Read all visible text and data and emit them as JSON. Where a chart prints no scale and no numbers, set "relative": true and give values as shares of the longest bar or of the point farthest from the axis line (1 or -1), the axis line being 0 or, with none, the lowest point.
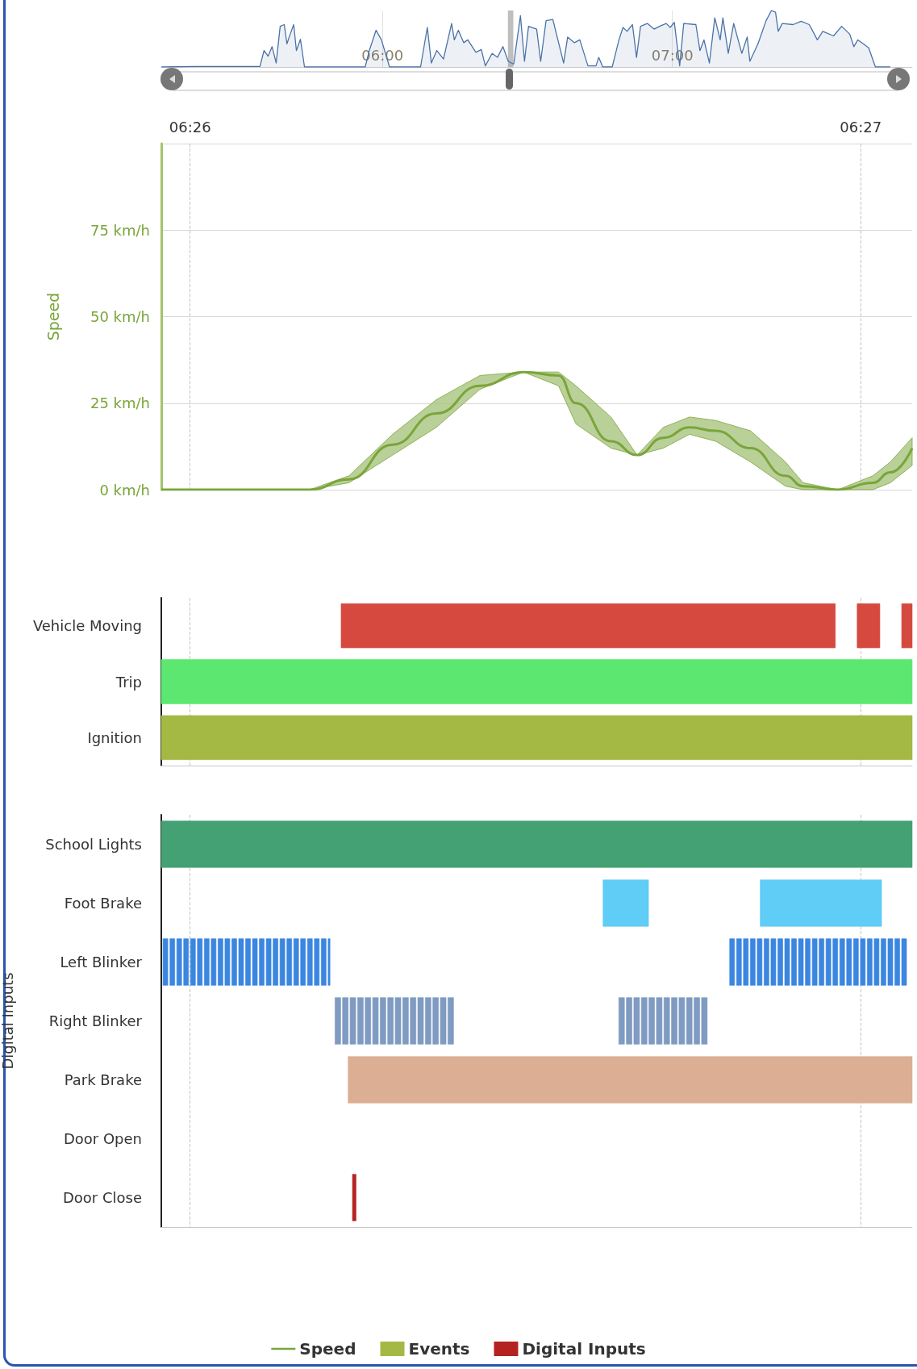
{
  "chart_data": [
    {
      "type": "area",
      "relative": true,
      "color": "#4a72a8",
      "grid": "x",
      "xlim": [
        5.237,
        7.827
      ],
      "xticks": [
        {
          "value": 6,
          "label": "06:00"
        },
        {
          "value": 7,
          "label": "07:00"
        }
      ],
      "tick_labels": "x",
      "bands": [
        {
          "axis": "x",
          "from": 6.432617,
          "to": 6.451279,
          "color": "#b8b8b8"
        }
      ],
      "x": [
        5.2374,
        5.354,
        5.5773,
        5.5913,
        5.6053,
        5.6192,
        5.6332,
        5.6471,
        5.6611,
        5.6704,
        5.6816,
        5.6937,
        5.703,
        5.7169,
        5.7309,
        5.9404,
        5.9544,
        5.9777,
        5.9963,
        6.0242,
        6.1313,
        6.1546,
        6.1685,
        6.1872,
        6.2104,
        6.2384,
        6.2477,
        6.2616,
        6.2803,
        6.2942,
        6.3222,
        6.3408,
        6.3547,
        6.378,
        6.3966,
        6.4153,
        6.4339,
        6.4525,
        6.4758,
        6.4898,
        6.5037,
        6.5317,
        6.5456,
        6.5642,
        6.5875,
        6.6248,
        6.6387,
        6.662,
        6.6806,
        6.7086,
        6.7365,
        6.7458,
        6.7598,
        6.7924,
        6.8156,
        6.8296,
        6.8436,
        6.8622,
        6.8762,
        6.8901,
        6.9134,
        6.9367,
        6.9553,
        6.9786,
        6.9926,
        7.0065,
        7.0251,
        7.0391,
        7.081,
        7.095,
        7.1089,
        7.1276,
        7.1462,
        7.1648,
        7.1741,
        7.1927,
        7.2114,
        7.2393,
        7.2579,
        7.2672,
        7.2952,
        7.3231,
        7.3417,
        7.3557,
        7.365,
        7.379,
        7.4162,
        7.4441,
        7.4721,
        7.5,
        7.5186,
        7.5559,
        7.5838,
        7.6117,
        7.6257,
        7.6397,
        7.6583,
        7.6769,
        7.7002,
        7.7514
      ],
      "values": [
        0,
        0.01,
        0.01,
        0.29,
        0.19,
        0.36,
        0.07,
        0.72,
        0.75,
        0.41,
        0.58,
        0.75,
        0.29,
        0.49,
        0,
        0,
        0.29,
        0.65,
        0.48,
        0,
        0,
        0.7,
        0.07,
        0.29,
        0.14,
        0.77,
        0.48,
        0.65,
        0.43,
        0.48,
        0.26,
        0.31,
        0.02,
        0.24,
        0.17,
        0.36,
        0.1,
        0.05,
        0.91,
        0.1,
        0.72,
        0.67,
        0.1,
        0.82,
        0.84,
        0.07,
        0.53,
        0.43,
        0.48,
        0.02,
        0.02,
        0.17,
        0,
        0,
        0.48,
        0.7,
        0.63,
        0.75,
        0.17,
        0.72,
        0.77,
        0.67,
        0.72,
        0.77,
        0.7,
        0.79,
        0.02,
        0.77,
        0.75,
        0.29,
        0.48,
        0.07,
        0.87,
        0.48,
        0.87,
        0.24,
        0.77,
        0.24,
        0.53,
        0.1,
        0.41,
        0.82,
        1,
        0.97,
        0.63,
        0.77,
        0.75,
        0.81,
        0.75,
        0.48,
        0.63,
        0.55,
        0.72,
        0.58,
        0.36,
        0.48,
        0.41,
        0.34,
        0,
        0
      ]
    },
    {
      "type": "line",
      "ylabel": "Speed",
      "grid": true,
      "legend": "bottom",
      "xlim": [
        6.432617,
        6.451279
      ],
      "xticks": [
        {
          "value": 6.433333,
          "label": "06:26"
        },
        {
          "value": 6.45,
          "label": "06:27"
        }
      ],
      "ylim": [
        0,
        100
      ],
      "yticks": [
        {
          "value": 0,
          "label": "0 km/h"
        },
        {
          "value": 25,
          "label": "25 km/h"
        },
        {
          "value": 50,
          "label": "50 km/h"
        },
        {
          "value": 75,
          "label": "75 km/h"
        },
        {
          "value": 100,
          "label": null
        }
      ],
      "x": [
        6.432617,
        6.436306,
        6.437282,
        6.438367,
        6.439452,
        6.440537,
        6.441622,
        6.44249,
        6.442924,
        6.443792,
        6.444443,
        6.445094,
        6.445745,
        6.446396,
        6.447264,
        6.448132,
        6.448566,
        6.449434,
        6.450302,
        6.450736,
        6.451279
      ],
      "series": [
        {
          "name": "Speed",
          "color": "#7aa53a",
          "values": [
            0,
            0,
            3,
            13,
            22,
            30,
            34,
            33,
            25,
            14,
            10,
            15,
            18,
            17,
            12,
            4,
            1,
            0,
            2,
            5,
            12
          ],
          "lower": [
            0,
            0,
            2,
            10,
            18,
            29,
            34,
            30,
            19,
            12,
            10,
            12,
            16,
            14,
            8,
            1,
            0,
            0,
            0,
            2,
            7
          ],
          "upper": [
            0,
            0,
            4,
            16,
            26,
            33,
            34,
            34,
            30,
            21,
            10,
            18,
            21,
            20,
            17,
            8,
            2,
            0,
            4,
            8,
            15
          ]
        }
      ]
    },
    {
      "type": "bar",
      "orientation": "horizontal",
      "legend": "bottom",
      "tick_labels": "y",
      "grid": "x",
      "xlim": [
        6.432617,
        6.451279
      ],
      "xticks": [
        {
          "value": 6.433333,
          "label": null
        },
        {
          "value": 6.45,
          "label": null
        }
      ],
      "categories": [
        "Vehicle Moving",
        "Trip",
        "Ignition"
      ],
      "series": [
        {
          "name": "Events",
          "color": "#a4b844",
          "colors": [
            "#d5493f",
            "#5ce870",
            "#a4b844"
          ],
          "base": [
            6.437087,
            6.432617,
            6.432617
          ],
          "values": [
            0.012282,
            0.018662,
            0.018662
          ]
        },
        {
          "colors": [
            "#d5493f",
            null,
            null
          ],
          "base": [
            6.449912,
            null,
            null
          ],
          "values": [
            0.000564,
            null,
            null
          ]
        },
        {
          "colors": [
            "#d5493f",
            null,
            null
          ],
          "base": [
            6.451019,
            null,
            null
          ],
          "values": [
            0.00026,
            null,
            null
          ]
        }
      ]
    },
    {
      "type": "bar",
      "orientation": "horizontal",
      "legend": "bottom",
      "ylabel": "Digital Inputs",
      "tick_labels": "y",
      "grid": "x",
      "xlim": [
        6.432617,
        6.451279
      ],
      "xticks": [
        {
          "value": 6.433333,
          "label": null
        },
        {
          "value": 6.45,
          "label": null
        }
      ],
      "categories": [
        "School Lights",
        "Foot Brake",
        "Left Blinker",
        "Right Blinker",
        "Park Brake",
        "Door Open",
        "Door Close"
      ],
      "series": [
        {
          "name": "Digital Inputs",
          "color": "#b52222",
          "colors": [
            "#44a173",
            "#5fcdf5",
            "#3b86e0",
            "#7f9bc2",
            "#dcae94",
            null,
            "#b52222"
          ],
          "base": [
            6.432617,
            6.443597,
            6.43266,
            6.436935,
            6.437261,
            null,
            6.437369
          ],
          "values": [
            0.018662,
            0.001129,
            0.00012,
            0.00014,
            0.014018,
            null,
            8.7e-05
          ]
        },
        {
          "colors": [
            null,
            "#5fcdf5",
            "#3b86e0",
            "#7f9bc2",
            null,
            null,
            null
          ],
          "base": [
            null,
            6.447503,
            6.432831,
            6.437122,
            null,
            null,
            null
          ],
          "values": [
            null,
            0.003016,
            0.00012,
            0.00014,
            null,
            null,
            null
          ]
        },
        {
          "colors": [
            null,
            null,
            "#3b86e0",
            "#7f9bc2",
            null,
            null,
            null
          ],
          "base": [
            null,
            null,
            6.433002,
            6.437309,
            null,
            null,
            null
          ],
          "values": [
            null,
            null,
            0.00012,
            0.00014,
            null,
            null,
            null
          ]
        },
        {
          "colors": [
            null,
            null,
            "#3b86e0",
            "#7f9bc2",
            null,
            null,
            null
          ],
          "base": [
            null,
            null,
            6.433173,
            6.437496,
            null,
            null,
            null
          ],
          "values": [
            null,
            null,
            0.00012,
            0.00014,
            null,
            null,
            null
          ]
        },
        {
          "colors": [
            null,
            null,
            "#3b86e0",
            "#7f9bc2",
            null,
            null,
            null
          ],
          "base": [
            null,
            null,
            6.433344,
            6.437683,
            null,
            null,
            null
          ],
          "values": [
            null,
            null,
            0.00012,
            0.00014,
            null,
            null,
            null
          ]
        },
        {
          "colors": [
            null,
            null,
            "#3b86e0",
            "#7f9bc2",
            null,
            null,
            null
          ],
          "base": [
            null,
            null,
            6.433515,
            6.43787,
            null,
            null,
            null
          ],
          "values": [
            null,
            null,
            0.00012,
            0.00014,
            null,
            null,
            null
          ]
        },
        {
          "colors": [
            null,
            null,
            "#3b86e0",
            "#7f9bc2",
            null,
            null,
            null
          ],
          "base": [
            null,
            null,
            6.433686,
            6.438057,
            null,
            null,
            null
          ],
          "values": [
            null,
            null,
            0.00012,
            0.00014,
            null,
            null,
            null
          ]
        },
        {
          "colors": [
            null,
            null,
            "#3b86e0",
            "#7f9bc2",
            null,
            null,
            null
          ],
          "base": [
            null,
            null,
            6.433857,
            6.438244,
            null,
            null,
            null
          ],
          "values": [
            null,
            null,
            0.00012,
            0.00014,
            null,
            null,
            null
          ]
        },
        {
          "colors": [
            null,
            null,
            "#3b86e0",
            "#7f9bc2",
            null,
            null,
            null
          ],
          "base": [
            null,
            null,
            6.434028,
            6.438431,
            null,
            null,
            null
          ],
          "values": [
            null,
            null,
            0.00012,
            0.00014,
            null,
            null,
            null
          ]
        },
        {
          "colors": [
            null,
            null,
            "#3b86e0",
            "#7f9bc2",
            null,
            null,
            null
          ],
          "base": [
            null,
            null,
            6.434199,
            6.438618,
            null,
            null,
            null
          ],
          "values": [
            null,
            null,
            0.00012,
            0.00014,
            null,
            null,
            null
          ]
        },
        {
          "colors": [
            null,
            null,
            "#3b86e0",
            "#7f9bc2",
            null,
            null,
            null
          ],
          "base": [
            null,
            null,
            6.43437,
            6.438805,
            null,
            null,
            null
          ],
          "values": [
            null,
            null,
            0.00012,
            0.00014,
            null,
            null,
            null
          ]
        },
        {
          "colors": [
            null,
            null,
            "#3b86e0",
            "#7f9bc2",
            null,
            null,
            null
          ],
          "base": [
            null,
            null,
            6.434541,
            6.438992,
            null,
            null,
            null
          ],
          "values": [
            null,
            null,
            0.00012,
            0.00014,
            null,
            null,
            null
          ]
        },
        {
          "colors": [
            null,
            null,
            "#3b86e0",
            "#7f9bc2",
            null,
            null,
            null
          ],
          "base": [
            null,
            null,
            6.434712,
            6.439179,
            null,
            null,
            null
          ],
          "values": [
            null,
            null,
            0.00012,
            0.00014,
            null,
            null,
            null
          ]
        },
        {
          "colors": [
            null,
            null,
            "#3b86e0",
            "#7f9bc2",
            null,
            null,
            null
          ],
          "base": [
            null,
            null,
            6.434883,
            6.439366,
            null,
            null,
            null
          ],
          "values": [
            null,
            null,
            0.00012,
            0.00014,
            null,
            null,
            null
          ]
        },
        {
          "colors": [
            null,
            null,
            "#3b86e0",
            "#7f9bc2",
            null,
            null,
            null
          ],
          "base": [
            null,
            null,
            6.435054,
            6.439553,
            null,
            null,
            null
          ],
          "values": [
            null,
            null,
            0.00012,
            0.00014,
            null,
            null,
            null
          ]
        },
        {
          "colors": [
            null,
            null,
            "#3b86e0",
            "#7f9bc2",
            null,
            null,
            null
          ],
          "base": [
            null,
            null,
            6.435225,
            6.43974,
            null,
            null,
            null
          ],
          "values": [
            null,
            null,
            0.00012,
            0.00014,
            null,
            null,
            null
          ]
        },
        {
          "colors": [
            null,
            null,
            "#3b86e0",
            "#7f9bc2",
            null,
            null,
            null
          ],
          "base": [
            null,
            null,
            6.435396,
            6.443988,
            null,
            null,
            null
          ],
          "values": [
            null,
            null,
            0.00012,
            0.00014,
            null,
            null,
            null
          ]
        },
        {
          "colors": [
            null,
            null,
            "#3b86e0",
            "#7f9bc2",
            null,
            null,
            null
          ],
          "base": [
            null,
            null,
            6.435567,
            6.444175,
            null,
            null,
            null
          ],
          "values": [
            null,
            null,
            0.00012,
            0.00014,
            null,
            null,
            null
          ]
        },
        {
          "colors": [
            null,
            null,
            "#3b86e0",
            "#7f9bc2",
            null,
            null,
            null
          ],
          "base": [
            null,
            null,
            6.435738,
            6.444362,
            null,
            null,
            null
          ],
          "values": [
            null,
            null,
            0.00012,
            0.00014,
            null,
            null,
            null
          ]
        },
        {
          "colors": [
            null,
            null,
            "#3b86e0",
            "#7f9bc2",
            null,
            null,
            null
          ],
          "base": [
            null,
            null,
            6.435909,
            6.444549,
            null,
            null,
            null
          ],
          "values": [
            null,
            null,
            0.00012,
            0.00014,
            null,
            null,
            null
          ]
        },
        {
          "colors": [
            null,
            null,
            "#3b86e0",
            "#7f9bc2",
            null,
            null,
            null
          ],
          "base": [
            null,
            null,
            6.43608,
            6.444736,
            null,
            null,
            null
          ],
          "values": [
            null,
            null,
            0.00012,
            0.00014,
            null,
            null,
            null
          ]
        },
        {
          "colors": [
            null,
            null,
            "#3b86e0",
            "#7f9bc2",
            null,
            null,
            null
          ],
          "base": [
            null,
            null,
            6.436251,
            6.444923,
            null,
            null,
            null
          ],
          "values": [
            null,
            null,
            0.00012,
            0.00014,
            null,
            null,
            null
          ]
        },
        {
          "colors": [
            null,
            null,
            "#3b86e0",
            "#7f9bc2",
            null,
            null,
            null
          ],
          "base": [
            null,
            null,
            6.436422,
            6.44511,
            null,
            null,
            null
          ],
          "values": [
            null,
            null,
            0.00012,
            0.00014,
            null,
            null,
            null
          ]
        },
        {
          "colors": [
            null,
            null,
            "#3b86e0",
            "#7f9bc2",
            null,
            null,
            null
          ],
          "base": [
            null,
            null,
            6.436593,
            6.445297,
            null,
            null,
            null
          ],
          "values": [
            null,
            null,
            0.00012,
            0.00014,
            null,
            null,
            null
          ]
        },
        {
          "colors": [
            null,
            null,
            "#3b86e0",
            "#7f9bc2",
            null,
            null,
            null
          ],
          "base": [
            null,
            null,
            6.436764,
            6.445484,
            null,
            null,
            null
          ],
          "values": [
            null,
            null,
            4.6e-05,
            0.00014,
            null,
            null,
            null
          ]
        },
        {
          "colors": [
            null,
            null,
            "#3b86e0",
            "#7f9bc2",
            null,
            null,
            null
          ],
          "base": [
            null,
            null,
            6.446744,
            6.445671,
            null,
            null,
            null
          ],
          "values": [
            null,
            null,
            0.00012,
            0.00014,
            null,
            null,
            null
          ]
        },
        {
          "colors": [
            null,
            null,
            "#3b86e0",
            "#7f9bc2",
            null,
            null,
            null
          ],
          "base": [
            null,
            null,
            6.446915,
            6.445858,
            null,
            null,
            null
          ],
          "values": [
            null,
            null,
            0.00012,
            0.00014,
            null,
            null,
            null
          ]
        },
        {
          "colors": [
            null,
            null,
            "#3b86e0",
            "#7f9bc2",
            null,
            null,
            null
          ],
          "base": [
            null,
            null,
            6.447086,
            6.446045,
            null,
            null,
            null
          ],
          "values": [
            null,
            null,
            0.00012,
            0.00014,
            null,
            null,
            null
          ]
        },
        {
          "colors": [
            null,
            null,
            "#3b86e0",
            null,
            null,
            null,
            null
          ],
          "base": [
            null,
            null,
            6.447257,
            null,
            null,
            null,
            null
          ],
          "values": [
            null,
            null,
            0.00012,
            null,
            null,
            null,
            null
          ]
        },
        {
          "colors": [
            null,
            null,
            "#3b86e0",
            null,
            null,
            null,
            null
          ],
          "base": [
            null,
            null,
            6.447428,
            null,
            null,
            null,
            null
          ],
          "values": [
            null,
            null,
            0.00012,
            null,
            null,
            null,
            null
          ]
        },
        {
          "colors": [
            null,
            null,
            "#3b86e0",
            null,
            null,
            null,
            null
          ],
          "base": [
            null,
            null,
            6.447599,
            null,
            null,
            null,
            null
          ],
          "values": [
            null,
            null,
            0.00012,
            null,
            null,
            null,
            null
          ]
        },
        {
          "colors": [
            null,
            null,
            "#3b86e0",
            null,
            null,
            null,
            null
          ],
          "base": [
            null,
            null,
            6.44777,
            null,
            null,
            null,
            null
          ],
          "values": [
            null,
            null,
            0.00012,
            null,
            null,
            null,
            null
          ]
        },
        {
          "colors": [
            null,
            null,
            "#3b86e0",
            null,
            null,
            null,
            null
          ],
          "base": [
            null,
            null,
            6.447941,
            null,
            null,
            null,
            null
          ],
          "values": [
            null,
            null,
            0.00012,
            null,
            null,
            null,
            null
          ]
        },
        {
          "colors": [
            null,
            null,
            "#3b86e0",
            null,
            null,
            null,
            null
          ],
          "base": [
            null,
            null,
            6.448112,
            null,
            null,
            null,
            null
          ],
          "values": [
            null,
            null,
            0.00012,
            null,
            null,
            null,
            null
          ]
        },
        {
          "colors": [
            null,
            null,
            "#3b86e0",
            null,
            null,
            null,
            null
          ],
          "base": [
            null,
            null,
            6.448283,
            null,
            null,
            null,
            null
          ],
          "values": [
            null,
            null,
            0.00012,
            null,
            null,
            null,
            null
          ]
        },
        {
          "colors": [
            null,
            null,
            "#3b86e0",
            null,
            null,
            null,
            null
          ],
          "base": [
            null,
            null,
            6.448454,
            null,
            null,
            null,
            null
          ],
          "values": [
            null,
            null,
            0.00012,
            null,
            null,
            null,
            null
          ]
        },
        {
          "colors": [
            null,
            null,
            "#3b86e0",
            null,
            null,
            null,
            null
          ],
          "base": [
            null,
            null,
            6.448625,
            null,
            null,
            null,
            null
          ],
          "values": [
            null,
            null,
            0.00012,
            null,
            null,
            null,
            null
          ]
        },
        {
          "colors": [
            null,
            null,
            "#3b86e0",
            null,
            null,
            null,
            null
          ],
          "base": [
            null,
            null,
            6.448796,
            null,
            null,
            null,
            null
          ],
          "values": [
            null,
            null,
            0.00012,
            null,
            null,
            null,
            null
          ]
        },
        {
          "colors": [
            null,
            null,
            "#3b86e0",
            null,
            null,
            null,
            null
          ],
          "base": [
            null,
            null,
            6.448967,
            null,
            null,
            null,
            null
          ],
          "values": [
            null,
            null,
            0.00012,
            null,
            null,
            null,
            null
          ]
        },
        {
          "colors": [
            null,
            null,
            "#3b86e0",
            null,
            null,
            null,
            null
          ],
          "base": [
            null,
            null,
            6.449138,
            null,
            null,
            null,
            null
          ],
          "values": [
            null,
            null,
            0.00012,
            null,
            null,
            null,
            null
          ]
        },
        {
          "colors": [
            null,
            null,
            "#3b86e0",
            null,
            null,
            null,
            null
          ],
          "base": [
            null,
            null,
            6.449309,
            null,
            null,
            null,
            null
          ],
          "values": [
            null,
            null,
            0.00012,
            null,
            null,
            null,
            null
          ]
        },
        {
          "colors": [
            null,
            null,
            "#3b86e0",
            null,
            null,
            null,
            null
          ],
          "base": [
            null,
            null,
            6.44948,
            null,
            null,
            null,
            null
          ],
          "values": [
            null,
            null,
            0.00012,
            null,
            null,
            null,
            null
          ]
        },
        {
          "colors": [
            null,
            null,
            "#3b86e0",
            null,
            null,
            null,
            null
          ],
          "base": [
            null,
            null,
            6.449651,
            null,
            null,
            null,
            null
          ],
          "values": [
            null,
            null,
            0.00012,
            null,
            null,
            null,
            null
          ]
        },
        {
          "colors": [
            null,
            null,
            "#3b86e0",
            null,
            null,
            null,
            null
          ],
          "base": [
            null,
            null,
            6.449822,
            null,
            null,
            null,
            null
          ],
          "values": [
            null,
            null,
            0.00012,
            null,
            null,
            null,
            null
          ]
        },
        {
          "colors": [
            null,
            null,
            "#3b86e0",
            null,
            null,
            null,
            null
          ],
          "base": [
            null,
            null,
            6.449993,
            null,
            null,
            null,
            null
          ],
          "values": [
            null,
            null,
            0.00012,
            null,
            null,
            null,
            null
          ]
        },
        {
          "colors": [
            null,
            null,
            "#3b86e0",
            null,
            null,
            null,
            null
          ],
          "base": [
            null,
            null,
            6.450164,
            null,
            null,
            null,
            null
          ],
          "values": [
            null,
            null,
            0.00012,
            null,
            null,
            null,
            null
          ]
        },
        {
          "colors": [
            null,
            null,
            "#3b86e0",
            null,
            null,
            null,
            null
          ],
          "base": [
            null,
            null,
            6.450335,
            null,
            null,
            null,
            null
          ],
          "values": [
            null,
            null,
            0.00012,
            null,
            null,
            null,
            null
          ]
        },
        {
          "colors": [
            null,
            null,
            "#3b86e0",
            null,
            null,
            null,
            null
          ],
          "base": [
            null,
            null,
            6.450506,
            null,
            null,
            null,
            null
          ],
          "values": [
            null,
            null,
            0.00012,
            null,
            null,
            null,
            null
          ]
        },
        {
          "colors": [
            null,
            null,
            "#3b86e0",
            null,
            null,
            null,
            null
          ],
          "base": [
            null,
            null,
            6.450677,
            null,
            null,
            null,
            null
          ],
          "values": [
            null,
            null,
            0.00012,
            null,
            null,
            null,
            null
          ]
        },
        {
          "colors": [
            null,
            null,
            "#3b86e0",
            null,
            null,
            null,
            null
          ],
          "base": [
            null,
            null,
            6.450848,
            null,
            null,
            null,
            null
          ],
          "values": [
            null,
            null,
            0.00012,
            null,
            null,
            null,
            null
          ]
        },
        {
          "colors": [
            null,
            null,
            "#3b86e0",
            null,
            null,
            null,
            null
          ],
          "base": [
            null,
            null,
            6.451019,
            null,
            null,
            null,
            null
          ],
          "values": [
            null,
            null,
            0.00012,
            null,
            null,
            null,
            null
          ]
        }
      ]
    }
  ]
}
